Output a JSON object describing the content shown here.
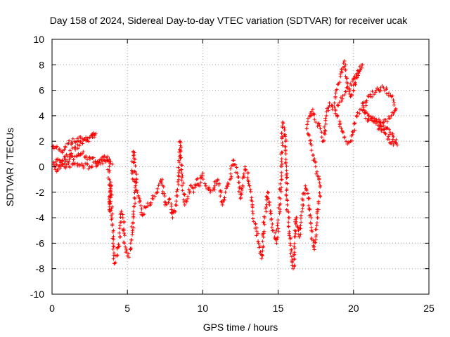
{
  "chart_data": {
    "type": "scatter",
    "title": "Day 158 of 2024, Sidereal Day-to-day VTEC variation (SDTVAR) for receiver ucak",
    "xlabel": "GPS time / hours",
    "ylabel": "SDTVAR / TECUs",
    "xlim": [
      0,
      25
    ],
    "ylim": [
      -10,
      10
    ],
    "xticks": [
      0,
      5,
      10,
      15,
      20,
      25
    ],
    "yticks": [
      -10,
      -8,
      -6,
      -4,
      -2,
      0,
      2,
      4,
      6,
      8,
      10
    ],
    "grid": true,
    "marker": "+",
    "color": "#ff0000",
    "series": [
      {
        "name": "SDTVAR",
        "anchors": [
          [
            0.05,
            1.6
          ],
          [
            0.3,
            1.5
          ],
          [
            0.6,
            1.2
          ],
          [
            1.0,
            1.8
          ],
          [
            1.5,
            2.0
          ],
          [
            2.0,
            2.2
          ],
          [
            2.5,
            2.3
          ],
          [
            2.9,
            2.6
          ],
          [
            0.1,
            0.2
          ],
          [
            0.5,
            0.1
          ],
          [
            1.0,
            0.4
          ],
          [
            1.5,
            0.8
          ],
          [
            2.0,
            1.0
          ],
          [
            2.5,
            0.7
          ],
          [
            3.0,
            0.4
          ],
          [
            3.4,
            0.8
          ],
          [
            3.8,
            0.6
          ],
          [
            4.0,
            0.2
          ],
          [
            0.2,
            -0.2
          ],
          [
            0.8,
            0.0
          ],
          [
            1.5,
            0.2
          ],
          [
            2.5,
            0.0
          ],
          [
            3.5,
            0.5
          ],
          [
            3.7,
            0.8
          ],
          [
            3.8,
            -1.0
          ],
          [
            3.85,
            -3.5
          ],
          [
            3.9,
            -1.2
          ],
          [
            4.0,
            -4.5
          ],
          [
            4.05,
            -6.0
          ],
          [
            4.15,
            -7.6
          ],
          [
            4.3,
            -7.0
          ],
          [
            4.5,
            -5.5
          ],
          [
            4.6,
            -3.5
          ],
          [
            4.7,
            -4.0
          ],
          [
            4.8,
            -6.0
          ],
          [
            5.0,
            -7.0
          ],
          [
            5.2,
            -6.5
          ],
          [
            5.4,
            -4.0
          ],
          [
            5.5,
            -2.5
          ],
          [
            5.6,
            -1.0
          ],
          [
            5.4,
            1.2
          ],
          [
            5.3,
            -0.5
          ],
          [
            5.8,
            -2.5
          ],
          [
            6.0,
            -3.8
          ],
          [
            6.2,
            -3.2
          ],
          [
            7.0,
            -2.0
          ],
          [
            7.3,
            -1.0
          ],
          [
            7.5,
            -3.0
          ],
          [
            7.8,
            -2.5
          ],
          [
            8.0,
            -4.0
          ],
          [
            8.2,
            -3.0
          ],
          [
            8.4,
            -1.0
          ],
          [
            8.5,
            2.0
          ],
          [
            8.6,
            -0.5
          ],
          [
            8.8,
            -3.0
          ],
          [
            9.0,
            -2.5
          ],
          [
            9.2,
            -1.5
          ],
          [
            9.4,
            -2.0
          ],
          [
            9.6,
            -1.0
          ],
          [
            9.8,
            -1.5
          ],
          [
            10.0,
            -0.5
          ],
          [
            10.2,
            -1.5
          ],
          [
            10.5,
            -2.0
          ],
          [
            10.8,
            -1.5
          ],
          [
            11.0,
            -1.0
          ],
          [
            11.3,
            -3.0
          ],
          [
            11.5,
            -2.0
          ],
          [
            11.8,
            -1.0
          ],
          [
            12.0,
            0.5
          ],
          [
            12.3,
            -0.5
          ],
          [
            12.5,
            -2.5
          ],
          [
            12.8,
            0.0
          ],
          [
            13.0,
            -0.5
          ],
          [
            13.3,
            -3.5
          ],
          [
            13.5,
            -4.5
          ],
          [
            13.7,
            -6.0
          ],
          [
            13.9,
            -7.2
          ],
          [
            14.1,
            -4.0
          ],
          [
            14.3,
            -2.0
          ],
          [
            14.5,
            -3.5
          ],
          [
            14.7,
            -5.0
          ],
          [
            14.9,
            -6.0
          ],
          [
            15.1,
            -3.0
          ],
          [
            15.2,
            -1.0
          ],
          [
            15.3,
            3.5
          ],
          [
            15.5,
            2.0
          ],
          [
            15.6,
            -3.0
          ],
          [
            15.8,
            -6.0
          ],
          [
            16.0,
            -8.0
          ],
          [
            16.2,
            -4.0
          ],
          [
            16.4,
            -5.5
          ],
          [
            16.6,
            -3.0
          ],
          [
            16.8,
            -1.5
          ],
          [
            17.0,
            -2.5
          ],
          [
            17.2,
            -5.0
          ],
          [
            17.4,
            -6.5
          ],
          [
            17.6,
            -4.0
          ],
          [
            17.8,
            -1.5
          ],
          [
            16.9,
            3.0
          ],
          [
            17.1,
            4.0
          ],
          [
            17.3,
            4.5
          ],
          [
            17.5,
            3.5
          ],
          [
            17.8,
            3.0
          ],
          [
            18.0,
            2.0
          ],
          [
            18.2,
            4.0
          ],
          [
            18.4,
            5.0
          ],
          [
            18.6,
            4.5
          ],
          [
            18.8,
            5.5
          ],
          [
            19.0,
            6.5
          ],
          [
            19.2,
            7.5
          ],
          [
            19.4,
            8.3
          ],
          [
            19.6,
            6.5
          ],
          [
            19.8,
            5.5
          ],
          [
            20.0,
            6.0
          ],
          [
            20.2,
            7.0
          ],
          [
            20.4,
            7.5
          ],
          [
            20.6,
            8.0
          ],
          [
            18.8,
            4.5
          ],
          [
            19.2,
            3.0
          ],
          [
            19.5,
            2.0
          ],
          [
            19.8,
            2.0
          ],
          [
            20.2,
            4.0
          ],
          [
            20.5,
            4.5
          ],
          [
            21.0,
            5.5
          ],
          [
            21.5,
            6.0
          ],
          [
            22.0,
            6.2
          ],
          [
            22.5,
            5.5
          ],
          [
            22.8,
            4.5
          ],
          [
            22.5,
            4.0
          ],
          [
            22.0,
            3.5
          ],
          [
            21.5,
            3.5
          ],
          [
            21.0,
            4.0
          ],
          [
            20.6,
            5.0
          ],
          [
            20.8,
            3.8
          ],
          [
            21.3,
            3.8
          ],
          [
            21.7,
            3.0
          ],
          [
            22.2,
            3.0
          ],
          [
            22.6,
            2.5
          ],
          [
            22.9,
            1.7
          ],
          [
            22.4,
            1.9
          ],
          [
            21.7,
            3.5
          ]
        ]
      }
    ]
  }
}
